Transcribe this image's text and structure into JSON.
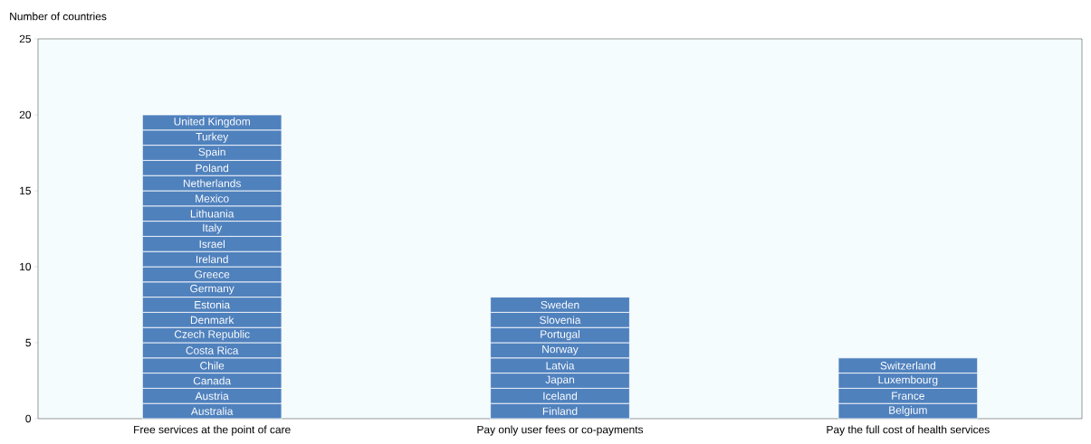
{
  "chart_data": {
    "type": "bar",
    "stacked": true,
    "ylabel": "Number of countries",
    "categories": [
      "Free services at the point of care",
      "Pay only user fees or co-payments",
      "Pay the full cost of health services"
    ],
    "ylim": [
      0,
      25
    ],
    "yticks": [
      0,
      5,
      10,
      15,
      20,
      25
    ],
    "series": [
      {
        "color": "#4f81bd",
        "values": [
          1,
          1,
          1
        ],
        "value_labels": [
          "Australia",
          "Finland",
          "Belgium"
        ]
      },
      {
        "color": "#4f81bd",
        "values": [
          1,
          1,
          1
        ],
        "value_labels": [
          "Austria",
          "Iceland",
          "France"
        ]
      },
      {
        "color": "#4f81bd",
        "values": [
          1,
          1,
          1
        ],
        "value_labels": [
          "Canada",
          "Japan",
          "Luxembourg"
        ]
      },
      {
        "color": "#4f81bd",
        "values": [
          1,
          1,
          1
        ],
        "value_labels": [
          "Chile",
          "Latvia",
          "Switzerland"
        ]
      },
      {
        "color": "#4f81bd",
        "values": [
          1,
          1,
          null
        ],
        "value_labels": [
          "Costa Rica",
          "Norway",
          null
        ]
      },
      {
        "color": "#4f81bd",
        "values": [
          1,
          1,
          null
        ],
        "value_labels": [
          "Czech Republic",
          "Portugal",
          null
        ]
      },
      {
        "color": "#4f81bd",
        "values": [
          1,
          1,
          null
        ],
        "value_labels": [
          "Denmark",
          "Slovenia",
          null
        ]
      },
      {
        "color": "#4f81bd",
        "values": [
          1,
          1,
          null
        ],
        "value_labels": [
          "Estonia",
          "Sweden",
          null
        ]
      },
      {
        "color": "#4f81bd",
        "values": [
          1,
          null,
          null
        ],
        "value_labels": [
          "Germany",
          null,
          null
        ]
      },
      {
        "color": "#4f81bd",
        "values": [
          1,
          null,
          null
        ],
        "value_labels": [
          "Greece",
          null,
          null
        ]
      },
      {
        "color": "#4f81bd",
        "values": [
          1,
          null,
          null
        ],
        "value_labels": [
          "Ireland",
          null,
          null
        ]
      },
      {
        "color": "#4f81bd",
        "values": [
          1,
          null,
          null
        ],
        "value_labels": [
          "Israel",
          null,
          null
        ]
      },
      {
        "color": "#4f81bd",
        "values": [
          1,
          null,
          null
        ],
        "value_labels": [
          "Italy",
          null,
          null
        ]
      },
      {
        "color": "#4f81bd",
        "values": [
          1,
          null,
          null
        ],
        "value_labels": [
          "Lithuania",
          null,
          null
        ]
      },
      {
        "color": "#4f81bd",
        "values": [
          1,
          null,
          null
        ],
        "value_labels": [
          "Mexico",
          null,
          null
        ]
      },
      {
        "color": "#4f81bd",
        "values": [
          1,
          null,
          null
        ],
        "value_labels": [
          "Netherlands",
          null,
          null
        ]
      },
      {
        "color": "#4f81bd",
        "values": [
          1,
          null,
          null
        ],
        "value_labels": [
          "Poland",
          null,
          null
        ]
      },
      {
        "color": "#4f81bd",
        "values": [
          1,
          null,
          null
        ],
        "value_labels": [
          "Spain",
          null,
          null
        ]
      },
      {
        "color": "#4f81bd",
        "values": [
          1,
          null,
          null
        ],
        "value_labels": [
          "Turkey",
          null,
          null
        ]
      },
      {
        "color": "#4f81bd",
        "values": [
          1,
          null,
          null
        ],
        "value_labels": [
          "United Kingdom",
          null,
          null
        ]
      }
    ]
  }
}
